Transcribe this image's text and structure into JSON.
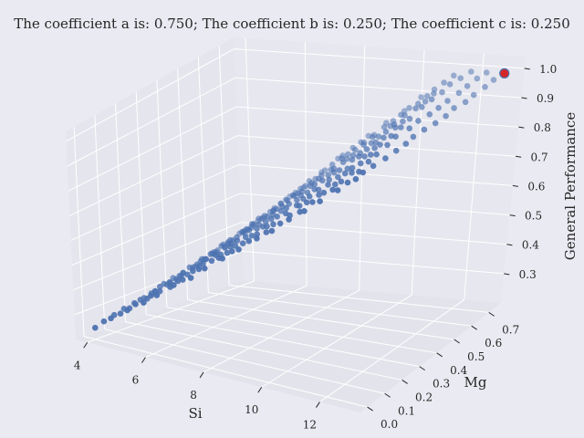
{
  "chart_data": {
    "type": "scatter3d",
    "title": "The coefficient a is: 0.750; The coefficient b is: 0.250; The coefficient c is: 0.250",
    "xlabel": "Si",
    "ylabel": "Mg",
    "zlabel": "General Performance",
    "xlim": [
      3.6,
      13.4
    ],
    "ylim": [
      -0.04,
      0.77
    ],
    "zlim": [
      0.2,
      1.04
    ],
    "xticks": [
      "4",
      "6",
      "8",
      "10",
      "12"
    ],
    "yticks": [
      "0.0",
      "0.1",
      "0.2",
      "0.3",
      "0.4",
      "0.5",
      "0.6",
      "0.7"
    ],
    "zticks": [
      "0.3",
      "0.4",
      "0.5",
      "0.6",
      "0.7",
      "0.8",
      "0.9",
      "1.0"
    ],
    "point_color": "#4c72b0",
    "highlight_color": "#d62728",
    "highlight_point": {
      "x": 13.0,
      "y": 0.73,
      "z": 1.0
    },
    "relation": "z = 0.75*x_norm + 0.25*y_norm (approx.)",
    "x_range": [
      4.0,
      13.0
    ],
    "y_range": [
      0.0,
      0.73
    ]
  }
}
